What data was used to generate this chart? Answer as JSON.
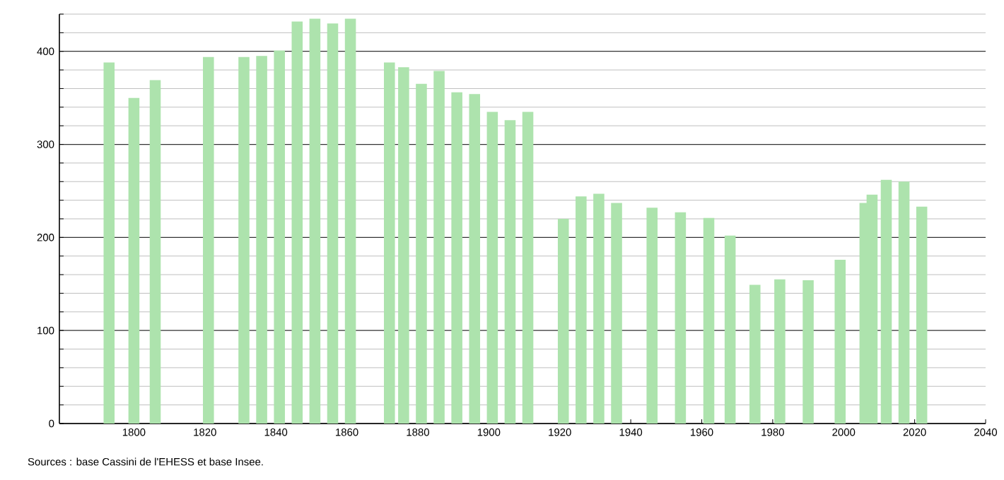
{
  "chart_data": {
    "type": "bar",
    "x": [
      1793,
      1800,
      1806,
      1821,
      1831,
      1836,
      1841,
      1846,
      1851,
      1856,
      1861,
      1872,
      1876,
      1881,
      1886,
      1891,
      1896,
      1901,
      1906,
      1911,
      1921,
      1926,
      1931,
      1936,
      1946,
      1954,
      1962,
      1968,
      1975,
      1982,
      1990,
      1999,
      2006,
      2008,
      2012,
      2017,
      2022
    ],
    "values": [
      388,
      350,
      369,
      394,
      394,
      395,
      401,
      432,
      435,
      430,
      435,
      388,
      383,
      365,
      379,
      356,
      354,
      335,
      326,
      335,
      220,
      244,
      247,
      237,
      232,
      227,
      221,
      202,
      149,
      155,
      154,
      176,
      237,
      246,
      262,
      260,
      233
    ],
    "color": "#ade3ad",
    "xlim": [
      1779,
      2040
    ],
    "xticks": [
      1800,
      1820,
      1840,
      1860,
      1880,
      1900,
      1920,
      1940,
      1960,
      1980,
      2000,
      2020,
      2040
    ],
    "ylim": [
      0,
      440
    ],
    "yticks": [
      0,
      {
        "value": 20,
        "label": null
      },
      {
        "value": 40,
        "label": null
      },
      {
        "value": 60,
        "label": null
      },
      {
        "value": 80,
        "label": null
      },
      100,
      {
        "value": 120,
        "label": null
      },
      {
        "value": 140,
        "label": null
      },
      {
        "value": 160,
        "label": null
      },
      {
        "value": 180,
        "label": null
      },
      200,
      {
        "value": 220,
        "label": null
      },
      {
        "value": 240,
        "label": null
      },
      {
        "value": 260,
        "label": null
      },
      {
        "value": 280,
        "label": null
      },
      300,
      {
        "value": 320,
        "label": null
      },
      {
        "value": 340,
        "label": null
      },
      {
        "value": 360,
        "label": null
      },
      {
        "value": 380,
        "label": null
      },
      400,
      {
        "value": 420,
        "label": null
      },
      {
        "value": 440,
        "label": null
      }
    ],
    "grid": "y",
    "annotations": [
      "Sources : base Cassini de l'EHESS et base Insee."
    ]
  }
}
